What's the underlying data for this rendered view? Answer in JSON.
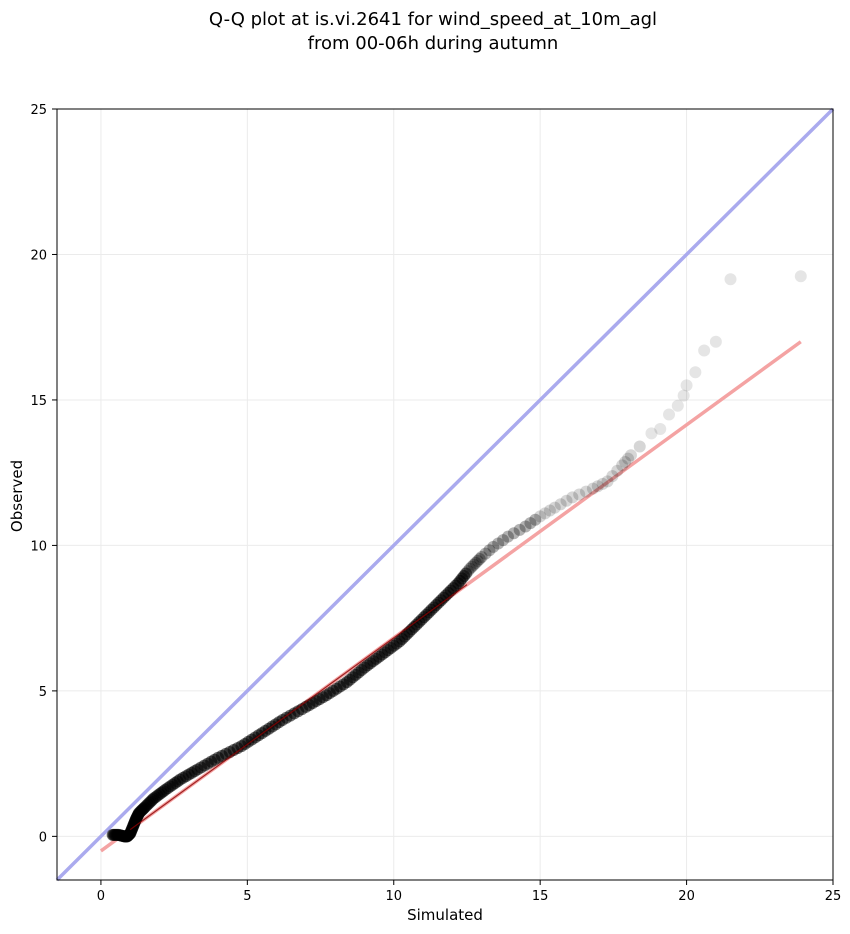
{
  "chart_data": {
    "type": "scatter",
    "title_lines": [
      "Q-Q plot at is.vi.2641 for wind_speed_at_10m_agl",
      "from 00-06h during autumn"
    ],
    "xlabel": "Simulated",
    "ylabel": "Observed",
    "xlim": [
      -1.5,
      25
    ],
    "ylim": [
      -1.5,
      25
    ],
    "xticks": [
      0,
      5,
      10,
      15,
      20,
      25
    ],
    "yticks": [
      0,
      5,
      10,
      15,
      20,
      25
    ],
    "grid": true,
    "colors": {
      "points": "#000000",
      "identity_line": "#aaaaee",
      "fit_line": "#f4a3a3",
      "fit_center": "#8b0000",
      "grid": "#ebebeb"
    },
    "identity_line": {
      "x": [
        -1.5,
        25
      ],
      "y": [
        -1.5,
        25
      ]
    },
    "fit_line": {
      "x": [
        0.0,
        23.9
      ],
      "y": [
        -0.5,
        17.0
      ]
    },
    "quantiles": {
      "x": [
        0.4,
        0.6,
        0.8,
        0.9,
        1.0,
        1.1,
        1.2,
        1.3,
        1.5,
        1.8,
        2.2,
        2.7,
        3.3,
        4.0,
        4.8,
        5.5,
        6.2,
        7.0,
        7.7,
        8.4,
        9.0,
        9.6,
        10.2,
        10.7,
        11.2,
        11.7,
        12.2,
        12.6,
        13.0,
        13.4,
        13.9,
        14.5,
        15.0,
        15.5,
        16.1,
        16.8,
        17.3,
        17.8,
        18.1,
        18.4,
        18.8,
        19.1,
        19.4,
        19.7,
        19.9,
        20.0,
        20.3,
        20.6,
        21.0,
        21.5,
        23.9
      ],
      "y": [
        0.05,
        0.05,
        0.0,
        0.0,
        0.1,
        0.35,
        0.6,
        0.8,
        1.0,
        1.3,
        1.6,
        1.95,
        2.3,
        2.7,
        3.1,
        3.55,
        4.0,
        4.45,
        4.85,
        5.3,
        5.8,
        6.25,
        6.7,
        7.2,
        7.7,
        8.2,
        8.7,
        9.2,
        9.6,
        9.95,
        10.3,
        10.65,
        11.0,
        11.3,
        11.65,
        11.95,
        12.2,
        12.75,
        13.1,
        13.4,
        13.85,
        14.0,
        14.5,
        14.8,
        15.15,
        15.5,
        15.95,
        16.7,
        17.0,
        19.15,
        19.25
      ]
    }
  }
}
